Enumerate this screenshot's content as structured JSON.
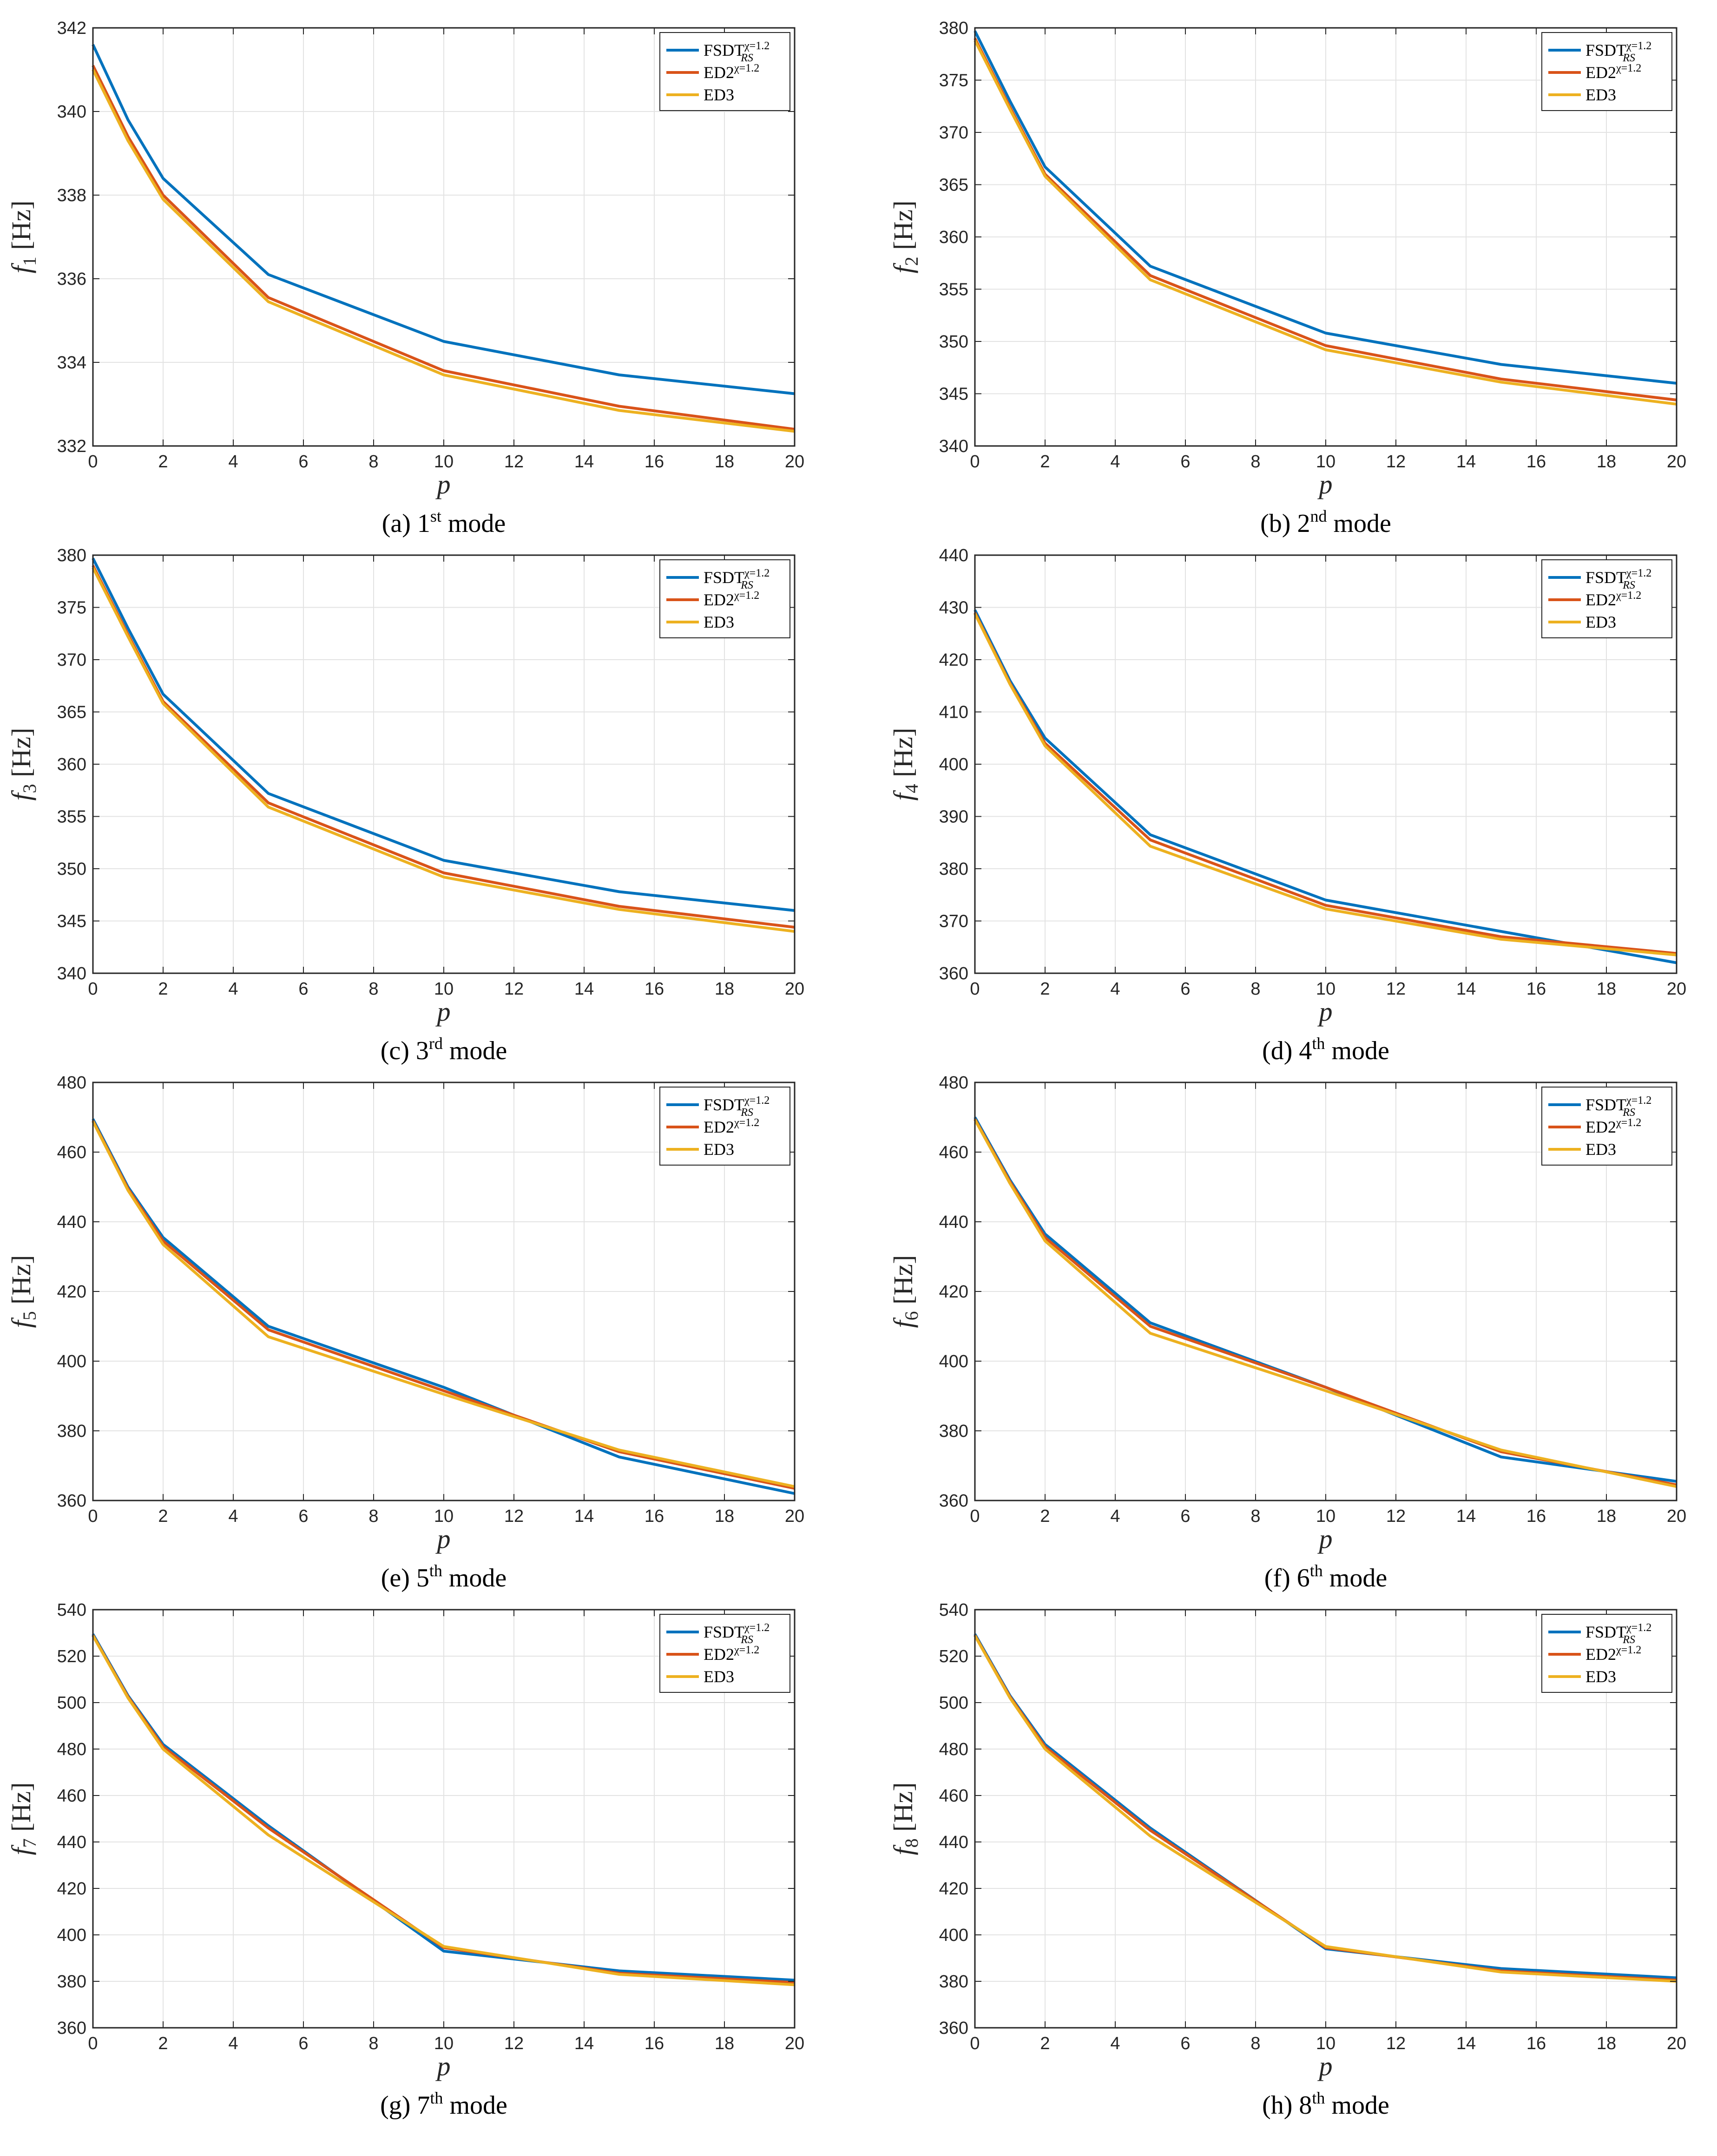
{
  "colors": {
    "fsdt": "#0072BD",
    "ed2": "#D95319",
    "ed3": "#EDB120"
  },
  "chart_data": [
    {
      "type": "line",
      "caption": "(a) 1st mode",
      "caption_parts": {
        "prefix": "(a) 1",
        "sup": "st",
        "suffix": " mode"
      },
      "xlabel": "p",
      "ylabel": {
        "base": "f",
        "sub": "1",
        "unit": " [Hz]"
      },
      "xlim": [
        0,
        20
      ],
      "xticks": [
        0,
        2,
        4,
        6,
        8,
        10,
        12,
        14,
        16,
        18,
        20
      ],
      "ylim": [
        332,
        342
      ],
      "yticks": [
        332,
        334,
        336,
        338,
        340,
        342
      ],
      "x": [
        0,
        1,
        2,
        5,
        10,
        15,
        20
      ],
      "legend": [
        "FSDT_RS^χ=1.2",
        "ED2^χ=1.2",
        "ED3"
      ],
      "legend_position": "top-right",
      "series": [
        {
          "name": "FSDT_RS^χ=1.2",
          "values": [
            341.6,
            339.8,
            338.4,
            336.1,
            334.5,
            333.7,
            333.25
          ]
        },
        {
          "name": "ED2^χ=1.2",
          "values": [
            341.1,
            339.4,
            338.0,
            335.55,
            333.8,
            332.95,
            332.4
          ]
        },
        {
          "name": "ED3",
          "values": [
            341.0,
            339.3,
            337.9,
            335.45,
            333.7,
            332.85,
            332.35
          ]
        }
      ]
    },
    {
      "type": "line",
      "caption": "(b) 2nd mode",
      "caption_parts": {
        "prefix": "(b) 2",
        "sup": "nd",
        "suffix": " mode"
      },
      "xlabel": "p",
      "ylabel": {
        "base": "f",
        "sub": "2",
        "unit": " [Hz]"
      },
      "xlim": [
        0,
        20
      ],
      "xticks": [
        0,
        2,
        4,
        6,
        8,
        10,
        12,
        14,
        16,
        18,
        20
      ],
      "ylim": [
        340,
        380
      ],
      "yticks": [
        340,
        345,
        350,
        355,
        360,
        365,
        370,
        375,
        380
      ],
      "x": [
        0,
        1,
        2,
        5,
        10,
        15,
        20
      ],
      "legend": [
        "FSDT_RS^χ=1.2",
        "ED2^χ=1.2",
        "ED3"
      ],
      "legend_position": "top-right",
      "series": [
        {
          "name": "FSDT_RS^χ=1.2",
          "values": [
            379.7,
            373.0,
            366.7,
            357.2,
            350.8,
            347.8,
            346.0
          ]
        },
        {
          "name": "ED2^χ=1.2",
          "values": [
            379.0,
            372.4,
            366.0,
            356.3,
            349.6,
            346.4,
            344.4
          ]
        },
        {
          "name": "ED3",
          "values": [
            378.8,
            372.2,
            365.8,
            355.9,
            349.2,
            346.1,
            344.0
          ]
        }
      ]
    },
    {
      "type": "line",
      "caption": "(c) 3rd mode",
      "caption_parts": {
        "prefix": "(c) 3",
        "sup": "rd",
        "suffix": " mode"
      },
      "xlabel": "p",
      "ylabel": {
        "base": "f",
        "sub": "3",
        "unit": " [Hz]"
      },
      "xlim": [
        0,
        20
      ],
      "xticks": [
        0,
        2,
        4,
        6,
        8,
        10,
        12,
        14,
        16,
        18,
        20
      ],
      "ylim": [
        340,
        380
      ],
      "yticks": [
        340,
        345,
        350,
        355,
        360,
        365,
        370,
        375,
        380
      ],
      "x": [
        0,
        1,
        2,
        5,
        10,
        15,
        20
      ],
      "legend": [
        "FSDT_RS^χ=1.2",
        "ED2^χ=1.2",
        "ED3"
      ],
      "legend_position": "top-right",
      "series": [
        {
          "name": "FSDT_RS^χ=1.2",
          "values": [
            379.7,
            373.0,
            366.7,
            357.2,
            350.8,
            347.8,
            346.0
          ]
        },
        {
          "name": "ED2^χ=1.2",
          "values": [
            379.0,
            372.4,
            366.0,
            356.3,
            349.6,
            346.4,
            344.4
          ]
        },
        {
          "name": "ED3",
          "values": [
            378.8,
            372.2,
            365.8,
            355.9,
            349.2,
            346.1,
            344.0
          ]
        }
      ]
    },
    {
      "type": "line",
      "caption": "(d) 4th mode",
      "caption_parts": {
        "prefix": "(d) 4",
        "sup": "th",
        "suffix": " mode"
      },
      "xlabel": "p",
      "ylabel": {
        "base": "f",
        "sub": "4",
        "unit": " [Hz]"
      },
      "xlim": [
        0,
        20
      ],
      "xticks": [
        0,
        2,
        4,
        6,
        8,
        10,
        12,
        14,
        16,
        18,
        20
      ],
      "ylim": [
        360,
        440
      ],
      "yticks": [
        360,
        370,
        380,
        390,
        400,
        410,
        420,
        430,
        440
      ],
      "x": [
        0,
        1,
        2,
        5,
        10,
        15,
        20
      ],
      "legend": [
        "FSDT_RS^χ=1.2",
        "ED2^χ=1.2",
        "ED3"
      ],
      "legend_position": "top-right",
      "series": [
        {
          "name": "FSDT_RS^χ=1.2",
          "values": [
            429.5,
            416.0,
            405.0,
            386.5,
            374.0,
            368.0,
            362.0
          ]
        },
        {
          "name": "ED2^χ=1.2",
          "values": [
            429.0,
            415.5,
            404.0,
            385.5,
            373.0,
            367.0,
            363.8
          ]
        },
        {
          "name": "ED3",
          "values": [
            428.8,
            415.3,
            403.5,
            384.3,
            372.3,
            366.5,
            363.5
          ]
        }
      ]
    },
    {
      "type": "line",
      "caption": "(e) 5th mode",
      "caption_parts": {
        "prefix": "(e) 5",
        "sup": "th",
        "suffix": " mode"
      },
      "xlabel": "p",
      "ylabel": {
        "base": "f",
        "sub": "5",
        "unit": " [Hz]"
      },
      "xlim": [
        0,
        20
      ],
      "xticks": [
        0,
        2,
        4,
        6,
        8,
        10,
        12,
        14,
        16,
        18,
        20
      ],
      "ylim": [
        360,
        480
      ],
      "yticks": [
        360,
        380,
        400,
        420,
        440,
        460,
        480
      ],
      "x": [
        0,
        1,
        2,
        5,
        10,
        15,
        20
      ],
      "legend": [
        "FSDT_RS^χ=1.2",
        "ED2^χ=1.2",
        "ED3"
      ],
      "legend_position": "top-right",
      "series": [
        {
          "name": "FSDT_RS^χ=1.2",
          "values": [
            469.5,
            450.0,
            435.5,
            410.0,
            392.5,
            372.5,
            362.0
          ]
        },
        {
          "name": "ED2^χ=1.2",
          "values": [
            469.0,
            449.5,
            434.5,
            409.0,
            391.5,
            374.0,
            363.5
          ]
        },
        {
          "name": "ED3",
          "values": [
            468.8,
            449.0,
            433.5,
            407.0,
            390.5,
            374.5,
            364.0
          ]
        }
      ]
    },
    {
      "type": "line",
      "caption": "(f) 6th mode",
      "caption_parts": {
        "prefix": "(f) 6",
        "sup": "th",
        "suffix": " mode"
      },
      "xlabel": "p",
      "ylabel": {
        "base": "f",
        "sub": "6",
        "unit": " [Hz]"
      },
      "xlim": [
        0,
        20
      ],
      "xticks": [
        0,
        2,
        4,
        6,
        8,
        10,
        12,
        14,
        16,
        18,
        20
      ],
      "ylim": [
        360,
        480
      ],
      "yticks": [
        360,
        380,
        400,
        420,
        440,
        460,
        480
      ],
      "x": [
        0,
        1,
        2,
        5,
        10,
        15,
        20
      ],
      "legend": [
        "FSDT_RS^χ=1.2",
        "ED2^χ=1.2",
        "ED3"
      ],
      "legend_position": "top-right",
      "series": [
        {
          "name": "FSDT_RS^χ=1.2",
          "values": [
            470.0,
            452.0,
            436.5,
            411.0,
            392.5,
            372.5,
            365.5
          ]
        },
        {
          "name": "ED2^χ=1.2",
          "values": [
            469.5,
            451.5,
            435.5,
            410.0,
            392.5,
            374.0,
            364.5
          ]
        },
        {
          "name": "ED3",
          "values": [
            469.3,
            451.0,
            434.5,
            408.0,
            391.5,
            374.5,
            364.0
          ]
        }
      ]
    },
    {
      "type": "line",
      "caption": "(g) 7th mode",
      "caption_parts": {
        "prefix": "(g) 7",
        "sup": "th",
        "suffix": " mode"
      },
      "xlabel": "p",
      "ylabel": {
        "base": "f",
        "sub": "7",
        "unit": " [Hz]"
      },
      "xlim": [
        0,
        20
      ],
      "xticks": [
        0,
        2,
        4,
        6,
        8,
        10,
        12,
        14,
        16,
        18,
        20
      ],
      "ylim": [
        360,
        540
      ],
      "yticks": [
        360,
        380,
        400,
        420,
        440,
        460,
        480,
        500,
        520,
        540
      ],
      "x": [
        0,
        1,
        2,
        5,
        10,
        15,
        20
      ],
      "legend": [
        "FSDT_RS^χ=1.2",
        "ED2^χ=1.2",
        "ED3"
      ],
      "legend_position": "top-right",
      "series": [
        {
          "name": "FSDT_RS^χ=1.2",
          "values": [
            529.5,
            503.0,
            482.0,
            447.0,
            393.0,
            384.5,
            380.5
          ]
        },
        {
          "name": "ED2^χ=1.2",
          "values": [
            529.0,
            502.5,
            481.0,
            446.0,
            394.5,
            383.5,
            379.5
          ]
        },
        {
          "name": "ED3",
          "values": [
            528.8,
            502.0,
            480.0,
            443.0,
            395.0,
            383.0,
            378.5
          ]
        }
      ]
    },
    {
      "type": "line",
      "caption": "(h) 8th mode",
      "caption_parts": {
        "prefix": "(h) 8",
        "sup": "th",
        "suffix": " mode"
      },
      "xlabel": "p",
      "ylabel": {
        "base": "f",
        "sub": "8",
        "unit": " [Hz]"
      },
      "xlim": [
        0,
        20
      ],
      "xticks": [
        0,
        2,
        4,
        6,
        8,
        10,
        12,
        14,
        16,
        18,
        20
      ],
      "ylim": [
        360,
        540
      ],
      "yticks": [
        360,
        380,
        400,
        420,
        440,
        460,
        480,
        500,
        520,
        540
      ],
      "x": [
        0,
        1,
        2,
        5,
        10,
        15,
        20
      ],
      "legend": [
        "FSDT_RS^χ=1.2",
        "ED2^χ=1.2",
        "ED3"
      ],
      "legend_position": "top-right",
      "series": [
        {
          "name": "FSDT_RS^χ=1.2",
          "values": [
            529.5,
            503.0,
            482.0,
            446.0,
            394.0,
            385.5,
            381.5
          ]
        },
        {
          "name": "ED2^χ=1.2",
          "values": [
            529.0,
            502.5,
            481.0,
            445.0,
            394.5,
            384.5,
            380.5
          ]
        },
        {
          "name": "ED3",
          "values": [
            528.8,
            502.0,
            480.0,
            442.5,
            395.0,
            384.0,
            380.0
          ]
        }
      ]
    }
  ]
}
